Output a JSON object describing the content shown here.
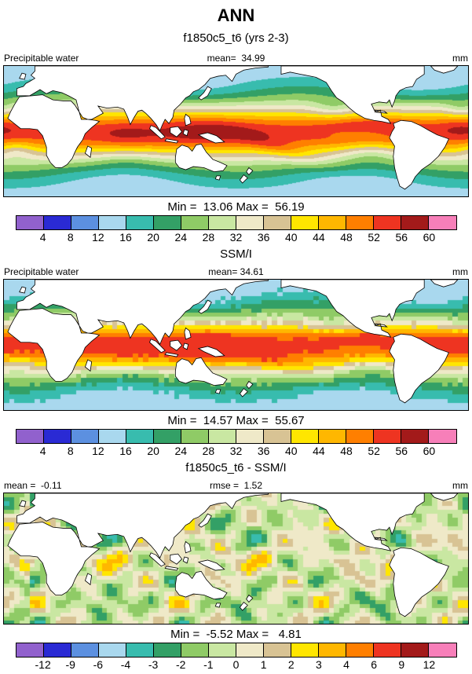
{
  "title": "ANN",
  "panels": [
    {
      "subtitle": "f1850c5_t6 (yrs 2-3)",
      "left": "Precipitable water",
      "center": "mean=  34.99",
      "right": "mm",
      "stats": "Min =  13.06 Max =  56.19"
    },
    {
      "subtitle": "SSM/I",
      "left": "Precipitable water",
      "center": "mean= 34.61",
      "right": "mm",
      "stats": "Min =  14.57 Max =  55.67"
    },
    {
      "subtitle": "f1850c5_t6 - SSM/I",
      "left": "mean =  -0.11",
      "center": "rmse =  1.52",
      "right": "mm",
      "stats": "Min =  -5.52 Max =   4.81"
    }
  ],
  "colorbars": {
    "main": {
      "ticks": [
        "4",
        "8",
        "12",
        "16",
        "20",
        "24",
        "28",
        "32",
        "36",
        "40",
        "44",
        "48",
        "52",
        "56",
        "60"
      ],
      "colors": [
        "#9161cd",
        "#2a2ad4",
        "#5c90e0",
        "#a9d8ee",
        "#38bcae",
        "#33a066",
        "#8fcb66",
        "#c9e7a2",
        "#efe9c8",
        "#d8c394",
        "#ffe600",
        "#ffb700",
        "#ff7f00",
        "#ee3421",
        "#a31a1a",
        "#f77fb9"
      ]
    },
    "diff": {
      "ticks": [
        "-12",
        "-9",
        "-6",
        "-4",
        "-3",
        "-2",
        "-1",
        "0",
        "1",
        "2",
        "3",
        "4",
        "6",
        "9",
        "12"
      ],
      "colors": [
        "#9161cd",
        "#2a2ad4",
        "#5c90e0",
        "#a9d8ee",
        "#38bcae",
        "#33a066",
        "#8fcb66",
        "#c9e7a2",
        "#efe9c8",
        "#d8c394",
        "#ffe600",
        "#ffb700",
        "#ff7f00",
        "#ee3421",
        "#a31a1a",
        "#f77fb9"
      ]
    }
  },
  "chart_data": [
    {
      "type": "heatmap",
      "panel": "model",
      "title": "f1850c5_t6 (yrs 2-3)",
      "variable": "Precipitable water",
      "units": "mm",
      "mean": 34.99,
      "min": 13.06,
      "max": 56.19,
      "contour_levels": [
        4,
        8,
        12,
        16,
        20,
        24,
        28,
        32,
        36,
        40,
        44,
        48,
        52,
        56,
        60
      ],
      "palette": "colorbars.main"
    },
    {
      "type": "heatmap",
      "panel": "observation",
      "title": "SSM/I",
      "variable": "Precipitable water",
      "units": "mm",
      "mean": 34.61,
      "min": 14.57,
      "max": 55.67,
      "contour_levels": [
        4,
        8,
        12,
        16,
        20,
        24,
        28,
        32,
        36,
        40,
        44,
        48,
        52,
        56,
        60
      ],
      "palette": "colorbars.main"
    },
    {
      "type": "heatmap",
      "panel": "difference",
      "title": "f1850c5_t6 - SSM/I",
      "variable": "Precipitable water",
      "units": "mm",
      "mean": -0.11,
      "rmse": 1.52,
      "min": -5.52,
      "max": 4.81,
      "contour_levels": [
        -12,
        -9,
        -6,
        -4,
        -3,
        -2,
        -1,
        0,
        1,
        2,
        3,
        4,
        6,
        9,
        12
      ],
      "palette": "colorbars.diff"
    }
  ]
}
